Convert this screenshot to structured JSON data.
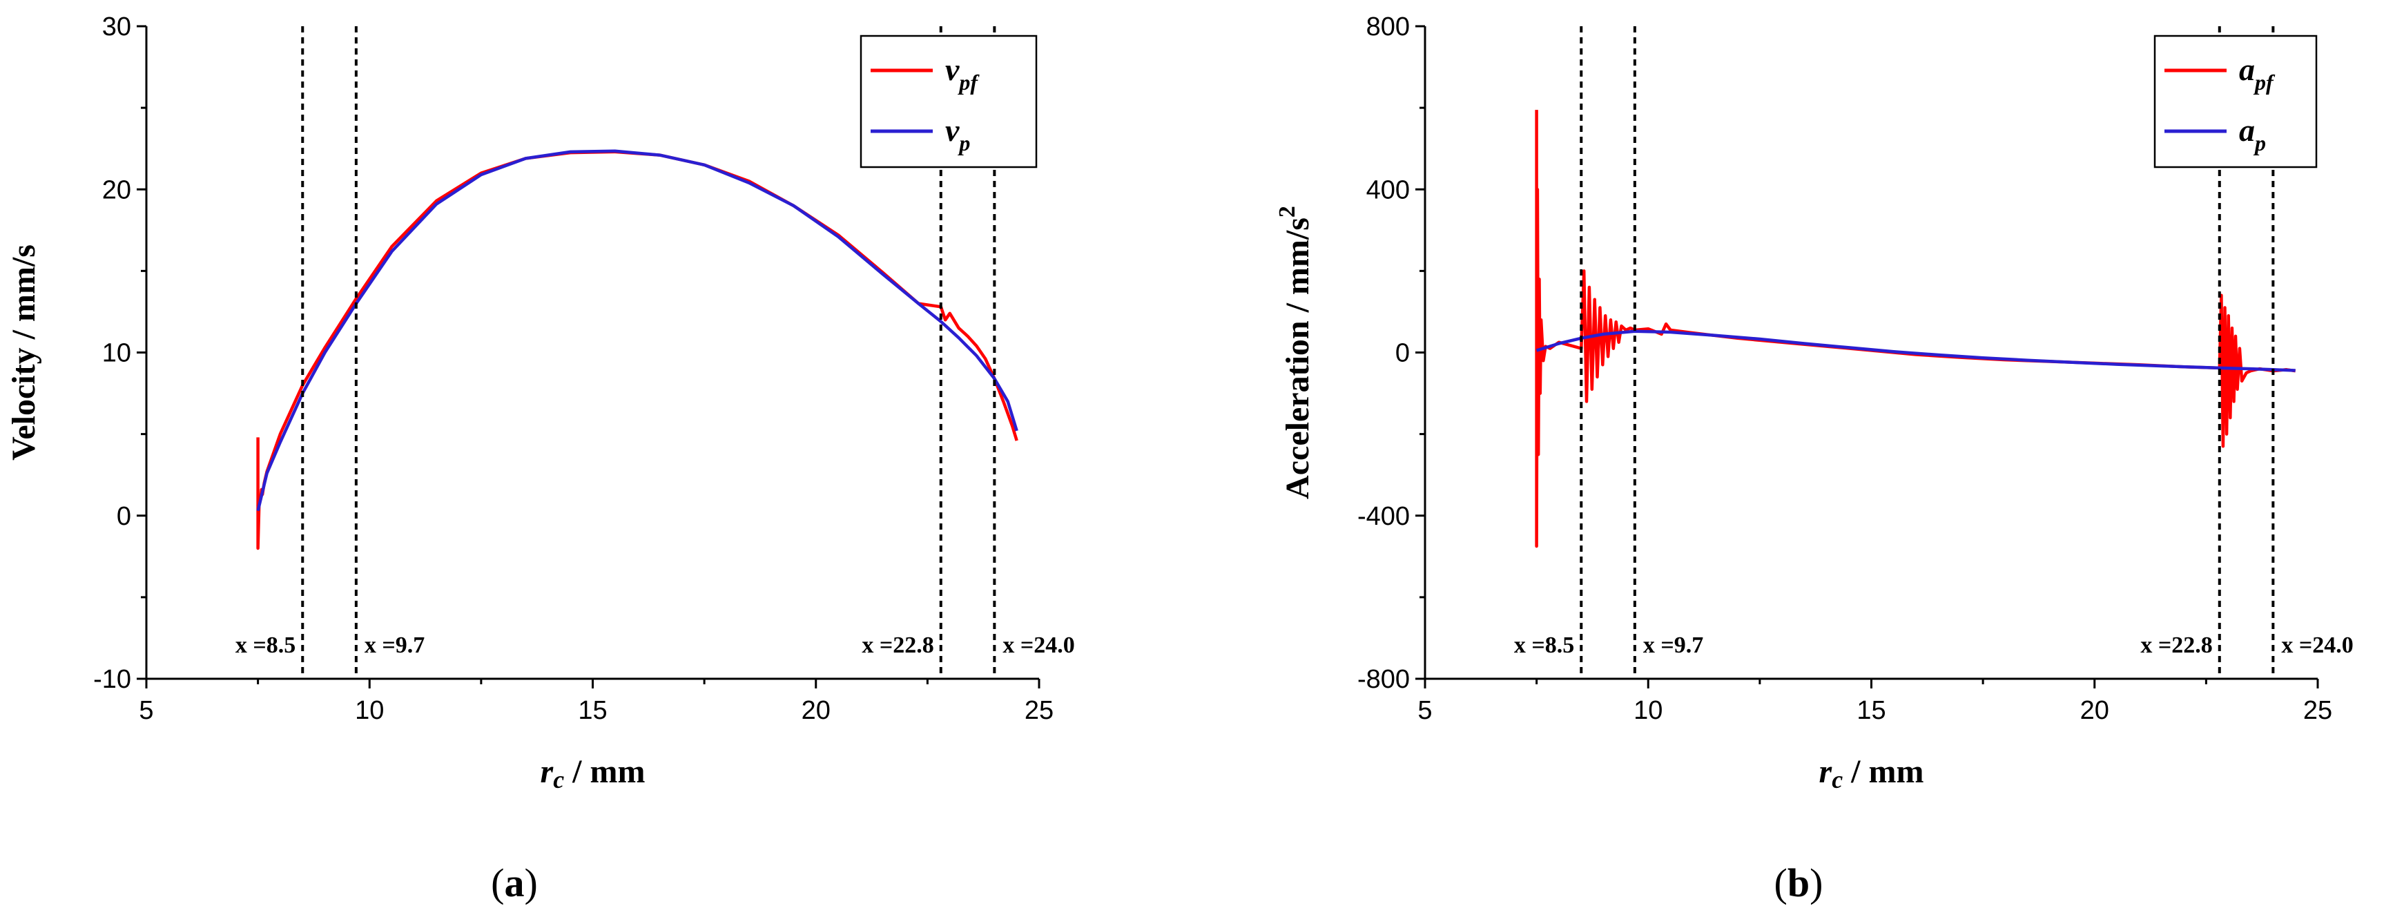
{
  "chart_data": [
    {
      "type": "line",
      "panel_label": "(a)",
      "panel_letter": "a",
      "xlabel_italic": "r",
      "xlabel_sub": "c",
      "xlabel_rest": " / mm",
      "ylabel": "Velocity / mm/s",
      "xlim": [
        5,
        25
      ],
      "ylim": [
        -10,
        30
      ],
      "xticks": [
        5,
        10,
        15,
        20,
        25
      ],
      "yticks": [
        -10,
        0,
        10,
        20,
        30
      ],
      "legend_position": "top-right",
      "vlines": [
        {
          "x": 8.5,
          "label": "x =8.5"
        },
        {
          "x": 9.7,
          "label": "x =9.7"
        },
        {
          "x": 22.8,
          "label": "x =22.8"
        },
        {
          "x": 24.0,
          "label": "x =24.0"
        }
      ],
      "series": [
        {
          "name": "v_pf",
          "label_main": "v",
          "label_sub": "pf",
          "color": "#ff0000",
          "x": [
            7.5,
            7.5,
            7.53,
            7.56,
            7.58,
            7.6,
            7.64,
            7.7,
            8.0,
            8.5,
            9.0,
            9.7,
            10.5,
            11.5,
            12.5,
            13.5,
            14.5,
            15.5,
            16.5,
            17.5,
            18.5,
            19.5,
            20.5,
            21.5,
            22.3,
            22.8,
            22.9,
            23.0,
            23.2,
            23.4,
            23.6,
            23.8,
            24.0,
            24.2,
            24.4,
            24.5
          ],
          "y": [
            4.8,
            -2.0,
            1.2,
            1.0,
            1.6,
            1.3,
            2.0,
            2.7,
            5.0,
            8.0,
            10.3,
            13.3,
            16.5,
            19.3,
            21.0,
            21.9,
            22.25,
            22.3,
            22.1,
            21.5,
            20.5,
            19.0,
            17.2,
            14.9,
            13.0,
            12.8,
            12.0,
            12.4,
            11.5,
            11.0,
            10.4,
            9.6,
            8.4,
            7.0,
            5.5,
            4.6
          ]
        },
        {
          "name": "v_p",
          "label_main": "v",
          "label_sub": "p",
          "color": "#2a1fd1",
          "x": [
            7.5,
            7.7,
            8.0,
            8.5,
            9.0,
            9.7,
            10.5,
            11.5,
            12.5,
            13.5,
            14.5,
            15.5,
            16.5,
            17.5,
            18.5,
            19.5,
            20.5,
            21.5,
            22.3,
            22.8,
            23.2,
            23.6,
            24.0,
            24.3,
            24.5
          ],
          "y": [
            0.3,
            2.6,
            4.5,
            7.5,
            10.0,
            13.0,
            16.2,
            19.1,
            20.9,
            21.9,
            22.3,
            22.35,
            22.1,
            21.5,
            20.4,
            19.0,
            17.1,
            14.8,
            13.0,
            11.9,
            10.9,
            9.8,
            8.4,
            7.0,
            5.2
          ]
        }
      ]
    },
    {
      "type": "line",
      "panel_label": "(b)",
      "panel_letter": "b",
      "xlabel_italic": "r",
      "xlabel_sub": "c",
      "xlabel_rest": " / mm",
      "ylabel": "Acceleration / mm/s",
      "ylabel_sup": "2",
      "xlim": [
        5,
        25
      ],
      "ylim": [
        -800,
        800
      ],
      "xticks": [
        5,
        10,
        15,
        20,
        25
      ],
      "yticks": [
        -800,
        -400,
        0,
        400,
        800
      ],
      "legend_position": "top-right",
      "vlines": [
        {
          "x": 8.5,
          "label": "x =8.5"
        },
        {
          "x": 9.7,
          "label": "x =9.7"
        },
        {
          "x": 22.8,
          "label": "x =22.8"
        },
        {
          "x": 24.0,
          "label": "x =24.0"
        }
      ],
      "series": [
        {
          "name": "a_pf",
          "label_main": "a",
          "label_sub": "pf",
          "color": "#ff0000",
          "x": [
            7.5,
            7.5,
            7.52,
            7.54,
            7.56,
            7.58,
            7.6,
            7.65,
            7.7,
            7.8,
            8.0,
            8.5,
            8.56,
            8.62,
            8.68,
            8.74,
            8.8,
            8.86,
            8.92,
            8.98,
            9.04,
            9.1,
            9.16,
            9.22,
            9.28,
            9.34,
            9.4,
            9.5,
            9.6,
            9.7,
            10.0,
            10.3,
            10.4,
            10.5,
            11.0,
            12.0,
            13.0,
            14.0,
            15.0,
            16.0,
            17.0,
            18.0,
            19.0,
            20.0,
            21.0,
            22.0,
            22.8,
            22.84,
            22.88,
            22.92,
            22.96,
            23.0,
            23.04,
            23.08,
            23.12,
            23.16,
            23.2,
            23.25,
            23.3,
            23.4,
            23.5,
            23.7,
            24.0,
            24.3,
            24.5
          ],
          "y": [
            595,
            -475,
            400,
            -250,
            180,
            -100,
            80,
            -20,
            15,
            10,
            25,
            10,
            200,
            -120,
            160,
            -90,
            130,
            -60,
            110,
            -30,
            90,
            -10,
            80,
            10,
            75,
            25,
            65,
            55,
            60,
            55,
            58,
            45,
            70,
            55,
            48,
            35,
            25,
            15,
            5,
            -5,
            -12,
            -18,
            -22,
            -26,
            -30,
            -35,
            -38,
            140,
            -230,
            110,
            -200,
            90,
            -160,
            60,
            -120,
            40,
            -90,
            10,
            -70,
            -50,
            -45,
            -40,
            -45,
            -42,
            -45
          ]
        },
        {
          "name": "a_p",
          "label_main": "a",
          "label_sub": "p",
          "color": "#2a1fd1",
          "x": [
            7.5,
            8.0,
            8.5,
            9.0,
            9.7,
            10.5,
            11.5,
            12.5,
            13.5,
            14.5,
            15.5,
            16.5,
            17.5,
            18.5,
            19.5,
            20.5,
            21.5,
            22.3,
            22.8,
            23.5,
            24.0,
            24.5
          ],
          "y": [
            5,
            22,
            35,
            45,
            52,
            50,
            42,
            33,
            22,
            12,
            2,
            -6,
            -13,
            -19,
            -24,
            -29,
            -33,
            -36,
            -38,
            -40,
            -42,
            -44
          ]
        }
      ]
    }
  ]
}
